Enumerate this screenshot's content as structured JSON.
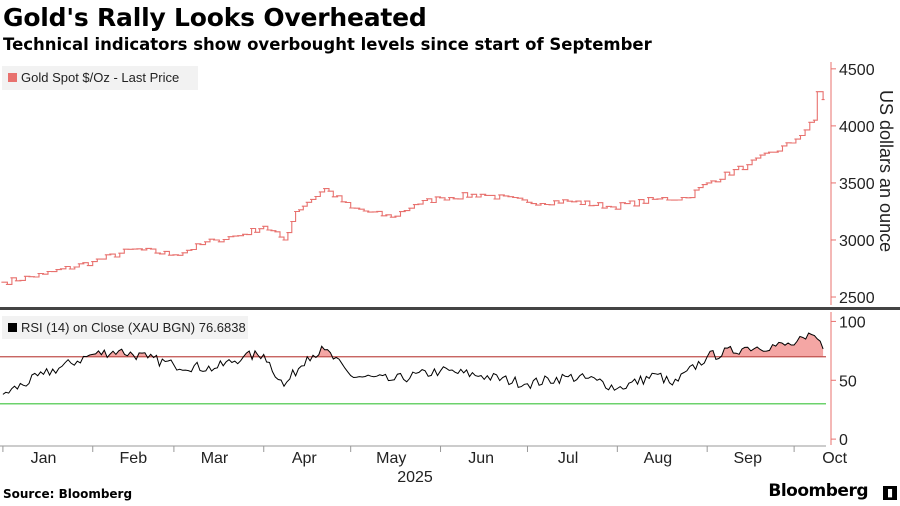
{
  "header": {
    "title": "Gold's Rally Looks Overheated",
    "subtitle": "Technical indicators show overbought levels since start of September"
  },
  "footer": {
    "source": "Source: Bloomberg",
    "brand": "Bloomberg"
  },
  "colors": {
    "price": "#e8716e",
    "overbought_line": "#c0504d",
    "oversold_line": "#3cc43c",
    "overbought_fill": "#f4a6a4",
    "rsi_line": "#000000",
    "divider": "#444444"
  },
  "chart_data": [
    {
      "type": "line",
      "legend": "Gold Spot $/Oz - Last Price",
      "ylabel": "US dollars an ounce",
      "ylim": [
        2430,
        4560
      ],
      "yticks": [
        2500,
        3000,
        3500,
        4000,
        4500
      ],
      "y_axis_side": "right",
      "legend_position": "top-left",
      "grid": false,
      "x": [
        "2025-01-01",
        "2025-01-15",
        "2025-02-01",
        "2025-02-15",
        "2025-03-01",
        "2025-03-15",
        "2025-03-25",
        "2025-04-01",
        "2025-04-08",
        "2025-04-12",
        "2025-04-16",
        "2025-04-22",
        "2025-05-01",
        "2025-05-15",
        "2025-05-23",
        "2025-06-01",
        "2025-06-15",
        "2025-07-01",
        "2025-07-15",
        "2025-07-30",
        "2025-08-15",
        "2025-08-25",
        "2025-09-01",
        "2025-09-15",
        "2025-09-30",
        "2025-10-08",
        "2025-10-09",
        "2025-10-11"
      ],
      "series": [
        {
          "values": [
            2630,
            2700,
            2810,
            2920,
            2870,
            3000,
            3050,
            3120,
            3000,
            3250,
            3330,
            3450,
            3280,
            3200,
            3310,
            3370,
            3400,
            3330,
            3340,
            3290,
            3360,
            3370,
            3500,
            3660,
            3850,
            4050,
            4300,
            4230
          ]
        }
      ]
    },
    {
      "type": "line",
      "legend": "RSI (14)  on Close (XAU BGN) 76.6838",
      "ylim": [
        -5,
        108
      ],
      "yticks": [
        0,
        50,
        100
      ],
      "y_axis_side": "right",
      "reference_lines": [
        70,
        30
      ],
      "shade_above": 70,
      "x": [
        "2025-01-01",
        "2025-01-15",
        "2025-02-01",
        "2025-02-10",
        "2025-02-20",
        "2025-03-01",
        "2025-03-15",
        "2025-03-25",
        "2025-04-01",
        "2025-04-08",
        "2025-04-16",
        "2025-04-22",
        "2025-05-01",
        "2025-05-15",
        "2025-06-01",
        "2025-06-15",
        "2025-07-01",
        "2025-07-15",
        "2025-07-25",
        "2025-08-01",
        "2025-08-15",
        "2025-08-20",
        "2025-09-01",
        "2025-09-15",
        "2025-09-30",
        "2025-10-05",
        "2025-10-08",
        "2025-10-11"
      ],
      "series": [
        {
          "values": [
            38,
            55,
            72,
            75,
            69,
            63,
            60,
            70,
            72,
            45,
            70,
            76,
            54,
            50,
            58,
            54,
            47,
            53,
            50,
            43,
            55,
            46,
            70,
            78,
            80,
            85,
            88,
            76.68
          ]
        }
      ]
    }
  ],
  "x_axis": {
    "months": [
      "Jan",
      "Feb",
      "Mar",
      "Apr",
      "May",
      "Jun",
      "Jul",
      "Aug",
      "Sep",
      "Oct"
    ],
    "year": "2025"
  }
}
